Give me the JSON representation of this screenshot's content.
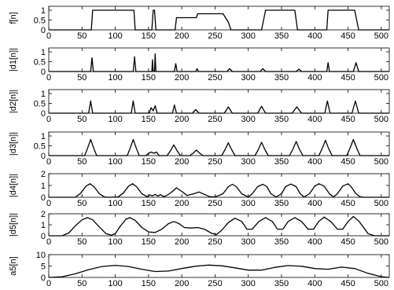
{
  "chart_data": [
    {
      "type": "line",
      "ylabel": "f[n]",
      "xlim": [
        0,
        512
      ],
      "ylim": [
        0,
        1.2
      ],
      "xticks": [
        "0",
        "50",
        "100",
        "150",
        "200",
        "250",
        "300",
        "350",
        "400",
        "450",
        "500"
      ],
      "yticks": [
        "0",
        "0.5",
        "1"
      ],
      "series": [
        {
          "x": [
            0,
            64,
            66,
            128,
            130,
            155,
            157,
            159,
            161,
            190,
            192,
            222,
            224,
            262,
            270,
            274,
            320,
            326,
            370,
            374,
            418,
            420,
            460,
            466,
            512
          ],
          "y": [
            0,
            0,
            1,
            1,
            0,
            0,
            1,
            1,
            0,
            0,
            0.62,
            0.62,
            0.82,
            0.82,
            0.4,
            0,
            0,
            1,
            1,
            0,
            0,
            1,
            1,
            0,
            0
          ]
        }
      ]
    },
    {
      "type": "line",
      "ylabel": "|d1[n]|",
      "xlim": [
        0,
        512
      ],
      "ylim": [
        0,
        1.2
      ],
      "xticks": [
        "0",
        "50",
        "100",
        "150",
        "200",
        "250",
        "300",
        "350",
        "400",
        "450",
        "500"
      ],
      "yticks": [
        "0",
        "0.5",
        "1"
      ],
      "series": [
        {
          "x": [
            0,
            63,
            65,
            67,
            127,
            129,
            131,
            155,
            156,
            157,
            159,
            160,
            161,
            189,
            191,
            193,
            221,
            223,
            225,
            268,
            272,
            276,
            318,
            322,
            326,
            372,
            376,
            380,
            418,
            420,
            422,
            458,
            462,
            466,
            512
          ],
          "y": [
            0,
            0,
            0.7,
            0,
            0,
            0.75,
            0,
            0,
            0.6,
            0,
            0,
            0.9,
            0,
            0,
            0.4,
            0,
            0,
            0.15,
            0,
            0,
            0.15,
            0,
            0,
            0.15,
            0,
            0,
            0.12,
            0,
            0,
            0.45,
            0,
            0,
            0.45,
            0,
            0
          ]
        }
      ]
    },
    {
      "type": "line",
      "ylabel": "|d2[n]|",
      "xlim": [
        0,
        512
      ],
      "ylim": [
        0,
        1.2
      ],
      "xticks": [
        "0",
        "50",
        "100",
        "150",
        "200",
        "250",
        "300",
        "350",
        "400",
        "450",
        "500"
      ],
      "yticks": [
        "0",
        "0.5",
        "1"
      ],
      "series": [
        {
          "x": [
            0,
            60,
            63,
            66,
            124,
            127,
            130,
            151,
            154,
            157,
            160,
            163,
            186,
            189,
            192,
            216,
            221,
            226,
            264,
            270,
            276,
            314,
            320,
            326,
            366,
            373,
            380,
            415,
            419,
            423,
            456,
            461,
            466,
            512
          ],
          "y": [
            0,
            0,
            0.62,
            0,
            0,
            0.62,
            0,
            0,
            0.28,
            0.12,
            0.38,
            0,
            0,
            0.42,
            0,
            0,
            0.18,
            0,
            0,
            0.32,
            0,
            0,
            0.35,
            0,
            0,
            0.32,
            0,
            0,
            0.62,
            0,
            0,
            0.62,
            0,
            0
          ]
        }
      ]
    },
    {
      "type": "line",
      "ylabel": "|d3[n]|",
      "xlim": [
        0,
        512
      ],
      "ylim": [
        0,
        1.2
      ],
      "xticks": [
        "0",
        "50",
        "100",
        "150",
        "200",
        "250",
        "300",
        "350",
        "400",
        "450",
        "500"
      ],
      "yticks": [
        "0",
        "0.5",
        "1"
      ],
      "series": [
        {
          "x": [
            0,
            54,
            58,
            63,
            68,
            72,
            118,
            122,
            127,
            132,
            136,
            146,
            150,
            154,
            158,
            162,
            166,
            178,
            183,
            188,
            193,
            198,
            212,
            217,
            222,
            227,
            232,
            260,
            265,
            270,
            275,
            280,
            310,
            315,
            320,
            325,
            330,
            362,
            367,
            372,
            377,
            382,
            406,
            411,
            416,
            421,
            426,
            448,
            453,
            458,
            463,
            468,
            512
          ],
          "y": [
            0,
            0,
            0.35,
            0.82,
            0.35,
            0,
            0,
            0.35,
            0.82,
            0.35,
            0,
            0,
            0.12,
            0.18,
            0.12,
            0.18,
            0,
            0,
            0.25,
            0.55,
            0.25,
            0,
            0,
            0.12,
            0.28,
            0.12,
            0,
            0,
            0.3,
            0.65,
            0.3,
            0,
            0,
            0.3,
            0.68,
            0.3,
            0,
            0,
            0.32,
            0.72,
            0.32,
            0,
            0,
            0.35,
            0.78,
            0.35,
            0,
            0,
            0.38,
            0.82,
            0.38,
            0,
            0
          ]
        }
      ]
    },
    {
      "type": "line",
      "ylabel": "|d4[n]|",
      "xlim": [
        0,
        512
      ],
      "ylim": [
        0,
        2
      ],
      "xticks": [
        "0",
        "50",
        "100",
        "150",
        "200",
        "250",
        "300",
        "350",
        "400",
        "450",
        "500"
      ],
      "yticks": [
        "0",
        "1",
        "2"
      ],
      "series": [
        {
          "x": [
            0,
            40,
            48,
            56,
            62,
            68,
            76,
            84,
            90,
            104,
            112,
            120,
            126,
            132,
            140,
            148,
            152,
            156,
            160,
            164,
            168,
            172,
            176,
            184,
            192,
            200,
            208,
            218,
            226,
            234,
            242,
            250,
            262,
            270,
            276,
            282,
            290,
            300,
            306,
            314,
            322,
            328,
            334,
            342,
            350,
            356,
            364,
            372,
            378,
            384,
            392,
            400,
            406,
            414,
            422,
            428,
            434,
            442,
            450,
            454,
            462,
            468,
            474,
            484,
            512
          ],
          "y": [
            0,
            0,
            0.35,
            0.95,
            1.15,
            0.9,
            0.3,
            0.02,
            0,
            0.02,
            0.35,
            0.95,
            1.15,
            0.9,
            0.3,
            0.05,
            0.2,
            0.12,
            0.25,
            0.1,
            0.22,
            0.08,
            0.1,
            0.4,
            0.8,
            0.5,
            0.15,
            0.3,
            0.45,
            0.25,
            0.05,
            0.02,
            0.3,
            0.9,
            1.1,
            0.9,
            0.3,
            0.02,
            0.3,
            0.9,
            1.1,
            0.9,
            0.3,
            0.02,
            0.3,
            0.9,
            1.12,
            0.9,
            0.3,
            0.02,
            0.3,
            0.95,
            1.15,
            0.95,
            0.3,
            0.02,
            0.3,
            0.95,
            1.15,
            0.95,
            0.3,
            0.05,
            0,
            0,
            0
          ]
        }
      ]
    },
    {
      "type": "line",
      "ylabel": "|d5[n]|",
      "xlim": [
        0,
        512
      ],
      "ylim": [
        0,
        2
      ],
      "xticks": [
        "0",
        "50",
        "100",
        "150",
        "200",
        "250",
        "300",
        "350",
        "400",
        "450",
        "500"
      ],
      "yticks": [
        "0",
        "1",
        "2"
      ],
      "series": [
        {
          "x": [
            0,
            20,
            30,
            40,
            50,
            58,
            66,
            76,
            86,
            94,
            100,
            108,
            116,
            122,
            130,
            140,
            150,
            160,
            170,
            180,
            188,
            196,
            204,
            214,
            224,
            234,
            244,
            252,
            260,
            270,
            280,
            290,
            298,
            306,
            316,
            326,
            336,
            344,
            352,
            360,
            370,
            380,
            390,
            398,
            406,
            414,
            424,
            434,
            442,
            450,
            458,
            466,
            474,
            480,
            490,
            512
          ],
          "y": [
            0,
            0,
            0.25,
            0.9,
            1.45,
            1.65,
            1.45,
            0.8,
            0.2,
            0.05,
            0.2,
            0.9,
            1.5,
            1.65,
            1.4,
            0.75,
            0.35,
            0.3,
            0.6,
            1.1,
            1.3,
            1.1,
            0.75,
            0.7,
            0.75,
            0.6,
            0.25,
            0.1,
            0.5,
            1.2,
            1.6,
            1.3,
            0.6,
            0.6,
            1.3,
            1.65,
            1.3,
            0.6,
            0.6,
            1.3,
            1.65,
            1.3,
            0.6,
            0.6,
            1.3,
            1.7,
            1.3,
            0.6,
            0.6,
            1.3,
            1.75,
            1.35,
            0.7,
            0.2,
            0,
            0
          ]
        }
      ]
    },
    {
      "type": "line",
      "ylabel": "a5[n]",
      "xlim": [
        0,
        512
      ],
      "ylim": [
        0,
        10
      ],
      "xticks": [
        "0",
        "50",
        "100",
        "150",
        "200",
        "250",
        "300",
        "350",
        "400",
        "450",
        "500"
      ],
      "yticks": [
        "0",
        "5",
        "10"
      ],
      "series": [
        {
          "x": [
            0,
            20,
            40,
            60,
            80,
            100,
            120,
            140,
            160,
            180,
            200,
            220,
            240,
            260,
            280,
            300,
            320,
            340,
            360,
            380,
            400,
            420,
            440,
            460,
            480,
            500,
            512
          ],
          "y": [
            0,
            0.3,
            1.6,
            3.4,
            4.8,
            5.3,
            4.8,
            3.6,
            2.6,
            2.8,
            3.9,
            4.9,
            5.4,
            5.1,
            4.2,
            3.2,
            3.2,
            4.4,
            5.2,
            4.9,
            3.9,
            3.6,
            4.5,
            3.9,
            1.8,
            0.3,
            0
          ]
        }
      ]
    }
  ]
}
